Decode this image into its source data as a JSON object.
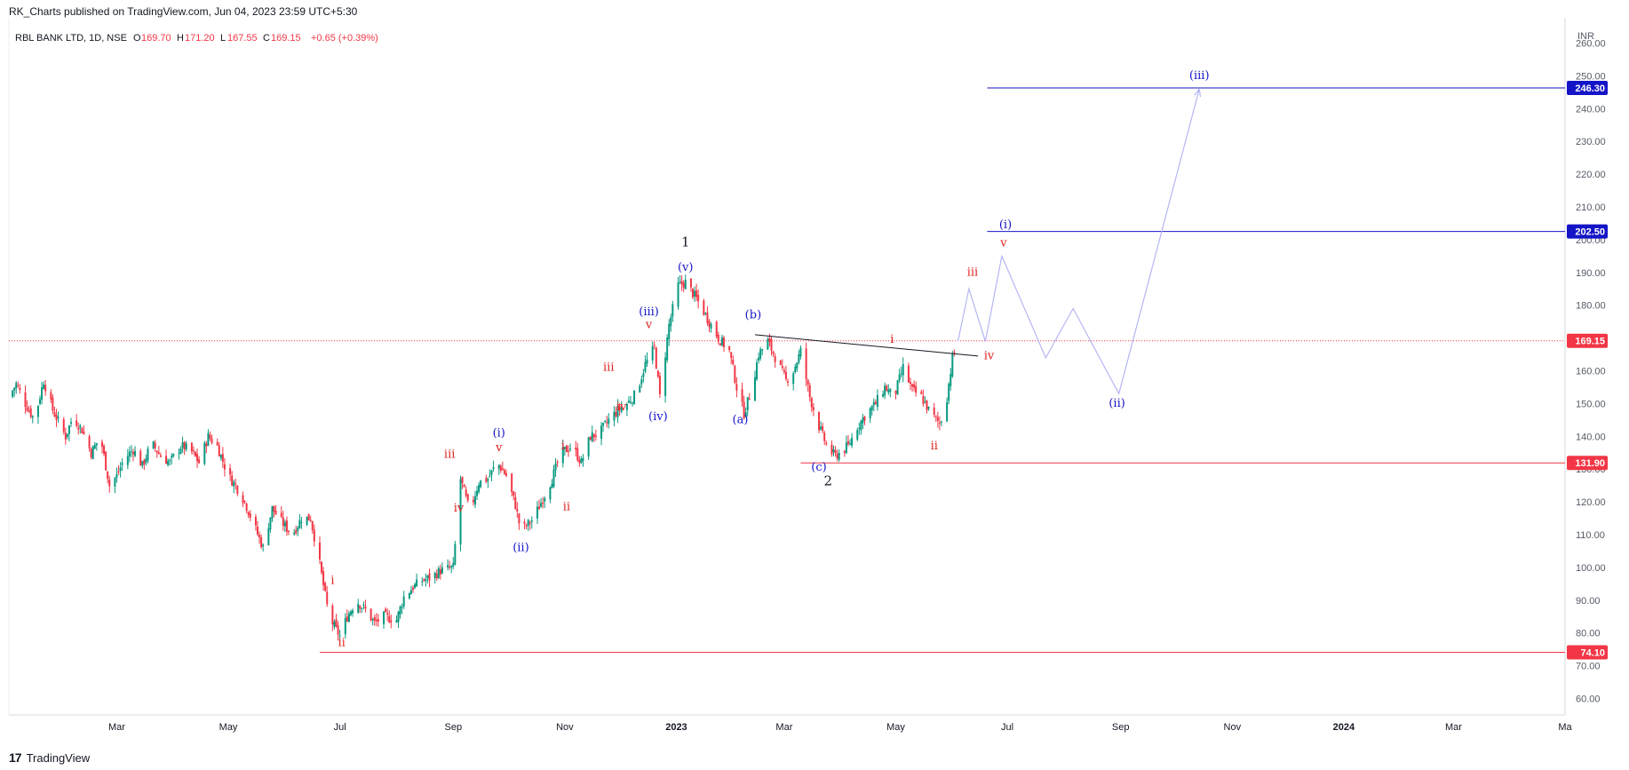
{
  "header": {
    "published": "RK_Charts published on TradingView.com, Jun 04, 2023 23:59 UTC+5:30"
  },
  "legend": {
    "symbol": "RBL BANK LTD, 1D, NSE",
    "o_label": "O",
    "o": "169.70",
    "h_label": "H",
    "h": "171.20",
    "l_label": "L",
    "l": "167.55",
    "c_label": "C",
    "c": "169.15",
    "change": "+0.65 (+0.39%)"
  },
  "watermark": {
    "logo": "17",
    "text": "TradingView"
  },
  "colors": {
    "up": "#089981",
    "down": "#f23645",
    "blue": "#1515c8",
    "red": "#e0201d",
    "projection": "#b6b6f5",
    "price_line": "#f23645",
    "axis_text": "#555b66"
  },
  "chart_data": {
    "type": "candlestick",
    "currency": "INR",
    "y_ticks": [
      60,
      70,
      80,
      90,
      100,
      110,
      120,
      130,
      140,
      150,
      160,
      170,
      180,
      190,
      200,
      210,
      220,
      230,
      240,
      250,
      260
    ],
    "y_tick_labels": [
      "60.00",
      "70.00",
      "80.00",
      "90.00",
      "100.00",
      "110.00",
      "120.00",
      "130.00",
      "140.00",
      "150.00",
      "160.00",
      "170.00",
      "180.00",
      "190.00",
      "200.00",
      "210.00",
      "220.00",
      "230.00",
      "240.00",
      "250.00",
      "260.00"
    ],
    "ylim": [
      55,
      265
    ],
    "x_ticks": [
      {
        "label": "Mar",
        "date": "2022-03-01"
      },
      {
        "label": "May",
        "date": "2022-05-01"
      },
      {
        "label": "Jul",
        "date": "2022-07-01"
      },
      {
        "label": "Sep",
        "date": "2022-09-01"
      },
      {
        "label": "Nov",
        "date": "2022-11-01"
      },
      {
        "label": "2023",
        "date": "2023-01-01"
      },
      {
        "label": "Mar",
        "date": "2023-03-01"
      },
      {
        "label": "May",
        "date": "2023-05-01"
      },
      {
        "label": "Jul",
        "date": "2023-07-01"
      },
      {
        "label": "Sep",
        "date": "2023-09-01"
      },
      {
        "label": "Nov",
        "date": "2023-11-01"
      },
      {
        "label": "2024",
        "date": "2024-01-01"
      },
      {
        "label": "Mar",
        "date": "2024-03-01"
      },
      {
        "label": "Ma",
        "date": "2024-05-01"
      }
    ],
    "xlim": [
      "2022-01-01",
      "2024-05-01"
    ],
    "price_path": [
      [
        "2022-01-01",
        152
      ],
      [
        "2022-01-05",
        156
      ],
      [
        "2022-01-10",
        150
      ],
      [
        "2022-01-15",
        145
      ],
      [
        "2022-01-20",
        157
      ],
      [
        "2022-01-25",
        148
      ],
      [
        "2022-02-01",
        140
      ],
      [
        "2022-02-05",
        146
      ],
      [
        "2022-02-10",
        142
      ],
      [
        "2022-02-15",
        135
      ],
      [
        "2022-02-20",
        140
      ],
      [
        "2022-02-25",
        125
      ],
      [
        "2022-03-01",
        128
      ],
      [
        "2022-03-05",
        133
      ],
      [
        "2022-03-10",
        136
      ],
      [
        "2022-03-15",
        131
      ],
      [
        "2022-03-20",
        138
      ],
      [
        "2022-03-25",
        134
      ],
      [
        "2022-03-30",
        132
      ],
      [
        "2022-04-05",
        137
      ],
      [
        "2022-04-10",
        136
      ],
      [
        "2022-04-15",
        132
      ],
      [
        "2022-04-20",
        140
      ],
      [
        "2022-04-25",
        137
      ],
      [
        "2022-05-01",
        128
      ],
      [
        "2022-05-05",
        125
      ],
      [
        "2022-05-10",
        120
      ],
      [
        "2022-05-15",
        113
      ],
      [
        "2022-05-20",
        106
      ],
      [
        "2022-05-25",
        118
      ],
      [
        "2022-05-30",
        114
      ],
      [
        "2022-06-05",
        110
      ],
      [
        "2022-06-10",
        115
      ],
      [
        "2022-06-15",
        115
      ],
      [
        "2022-06-20",
        101
      ],
      [
        "2022-06-25",
        85
      ],
      [
        "2022-07-01",
        79
      ],
      [
        "2022-07-05",
        85
      ],
      [
        "2022-07-10",
        90
      ],
      [
        "2022-07-15",
        87
      ],
      [
        "2022-07-20",
        83
      ],
      [
        "2022-07-25",
        85
      ],
      [
        "2022-08-01",
        84
      ],
      [
        "2022-08-05",
        91
      ],
      [
        "2022-08-10",
        94
      ],
      [
        "2022-08-15",
        96
      ],
      [
        "2022-08-20",
        97
      ],
      [
        "2022-08-25",
        99
      ],
      [
        "2022-09-01",
        100
      ],
      [
        "2022-09-05",
        127
      ],
      [
        "2022-09-10",
        117
      ],
      [
        "2022-09-15",
        126
      ],
      [
        "2022-09-20",
        127
      ],
      [
        "2022-09-25",
        132
      ],
      [
        "2022-09-30",
        128
      ],
      [
        "2022-10-05",
        119
      ],
      [
        "2022-10-08",
        111
      ],
      [
        "2022-10-15",
        115
      ],
      [
        "2022-10-20",
        121
      ],
      [
        "2022-10-25",
        127
      ],
      [
        "2022-10-30",
        135
      ],
      [
        "2022-11-05",
        137
      ],
      [
        "2022-11-10",
        132
      ],
      [
        "2022-11-15",
        140
      ],
      [
        "2022-11-20",
        141
      ],
      [
        "2022-11-25",
        145
      ],
      [
        "2022-11-30",
        148
      ],
      [
        "2022-12-05",
        150
      ],
      [
        "2022-12-10",
        153
      ],
      [
        "2022-12-15",
        162
      ],
      [
        "2022-12-20",
        167
      ],
      [
        "2022-12-23",
        152
      ],
      [
        "2022-12-28",
        174
      ],
      [
        "2023-01-02",
        186
      ],
      [
        "2023-01-06",
        187
      ],
      [
        "2023-01-12",
        182
      ],
      [
        "2023-01-18",
        176
      ],
      [
        "2023-01-24",
        170
      ],
      [
        "2023-01-30",
        166
      ],
      [
        "2023-02-03",
        155
      ],
      [
        "2023-02-07",
        147
      ],
      [
        "2023-02-11",
        154
      ],
      [
        "2023-02-15",
        165
      ],
      [
        "2023-02-20",
        169
      ],
      [
        "2023-02-25",
        163
      ],
      [
        "2023-03-02",
        157
      ],
      [
        "2023-03-06",
        160
      ],
      [
        "2023-03-10",
        166
      ],
      [
        "2023-03-15",
        152
      ],
      [
        "2023-03-20",
        143
      ],
      [
        "2023-03-25",
        136
      ],
      [
        "2023-03-29",
        134
      ],
      [
        "2023-04-05",
        137
      ],
      [
        "2023-04-10",
        143
      ],
      [
        "2023-04-15",
        147
      ],
      [
        "2023-04-20",
        150
      ],
      [
        "2023-04-25",
        155
      ],
      [
        "2023-04-30",
        152
      ],
      [
        "2023-05-05",
        161
      ],
      [
        "2023-05-10",
        154
      ],
      [
        "2023-05-15",
        152
      ],
      [
        "2023-05-20",
        147
      ],
      [
        "2023-05-25",
        144
      ],
      [
        "2023-05-28",
        148
      ],
      [
        "2023-06-01",
        164
      ],
      [
        "2023-06-04",
        169.15
      ]
    ],
    "horizontal_levels": [
      {
        "price": 246.3,
        "label": "246.30",
        "color": "blue",
        "from": "2023-06-20"
      },
      {
        "price": 202.5,
        "label": "202.50",
        "color": "blue",
        "from": "2023-06-20"
      },
      {
        "price": 169.15,
        "label": "169.15",
        "color": "red",
        "dotted": true,
        "from": "2022-01-01"
      },
      {
        "price": 131.9,
        "label": "131.90",
        "color": "red",
        "from": "2023-03-10"
      },
      {
        "price": 74.1,
        "label": "74.10",
        "color": "red",
        "from": "2022-06-20"
      }
    ],
    "trendline": {
      "from": [
        "2023-02-13",
        171
      ],
      "to": [
        "2023-06-15",
        164.5
      ]
    },
    "projection_path": [
      [
        "2023-06-04",
        169
      ],
      [
        "2023-06-10",
        185
      ],
      [
        "2023-06-19",
        169
      ],
      [
        "2023-06-28",
        195
      ],
      [
        "2023-07-22",
        164
      ],
      [
        "2023-08-06",
        179
      ],
      [
        "2023-08-31",
        153
      ],
      [
        "2023-10-14",
        246
      ]
    ],
    "wave_labels": [
      {
        "text": "1",
        "color": "black",
        "date": "2023-01-06",
        "price": 198,
        "size": 15
      },
      {
        "text": "2",
        "color": "black",
        "date": "2023-03-25",
        "price": 125,
        "size": 15
      },
      {
        "text": "(v)",
        "color": "blue",
        "date": "2023-01-06",
        "price": 190.5
      },
      {
        "text": "(iii)",
        "color": "blue",
        "date": "2022-12-17",
        "price": 177
      },
      {
        "text": "v",
        "color": "red",
        "date": "2022-12-17",
        "price": 173
      },
      {
        "text": "iii",
        "color": "red",
        "date": "2022-11-25",
        "price": 160
      },
      {
        "text": "iv",
        "color": "red",
        "date": "2022-12-02",
        "price": 148
      },
      {
        "text": "(iv)",
        "color": "blue",
        "date": "2022-12-22",
        "price": 145
      },
      {
        "text": "(b)",
        "color": "blue",
        "date": "2023-02-12",
        "price": 176
      },
      {
        "text": "(a)",
        "color": "blue",
        "date": "2023-02-05",
        "price": 144
      },
      {
        "text": "(c)",
        "color": "blue",
        "date": "2023-03-20",
        "price": 129.5
      },
      {
        "text": "(i)",
        "color": "blue",
        "date": "2022-09-26",
        "price": 140
      },
      {
        "text": "v",
        "color": "red",
        "date": "2022-09-26",
        "price": 135.5
      },
      {
        "text": "iii",
        "color": "red",
        "date": "2022-08-30",
        "price": 133.5
      },
      {
        "text": "iv",
        "color": "red",
        "date": "2022-09-04",
        "price": 117
      },
      {
        "text": "(ii)",
        "color": "blue",
        "date": "2022-10-08",
        "price": 105
      },
      {
        "text": "i",
        "color": "red",
        "date": "2022-10-31",
        "price": 136
      },
      {
        "text": "ii",
        "color": "red",
        "date": "2022-11-02",
        "price": 117.5
      },
      {
        "text": "i",
        "color": "red",
        "date": "2022-06-27",
        "price": 95
      },
      {
        "text": "ii",
        "color": "red",
        "date": "2022-07-02",
        "price": 76
      },
      {
        "text": "i",
        "color": "red",
        "date": "2023-04-29",
        "price": 168.5
      },
      {
        "text": "ii",
        "color": "red",
        "date": "2023-05-22",
        "price": 136
      },
      {
        "text": "iii",
        "color": "red",
        "date": "2023-06-12",
        "price": 189
      },
      {
        "text": "iv",
        "color": "red",
        "date": "2023-06-21",
        "price": 163.5
      },
      {
        "text": "v",
        "color": "red",
        "date": "2023-06-29",
        "price": 198
      },
      {
        "text": "(i)",
        "color": "blue",
        "date": "2023-06-30",
        "price": 203.5
      },
      {
        "text": "(ii)",
        "color": "blue",
        "date": "2023-08-30",
        "price": 149
      },
      {
        "text": "(iii)",
        "color": "blue",
        "date": "2023-10-14",
        "price": 249
      }
    ]
  }
}
